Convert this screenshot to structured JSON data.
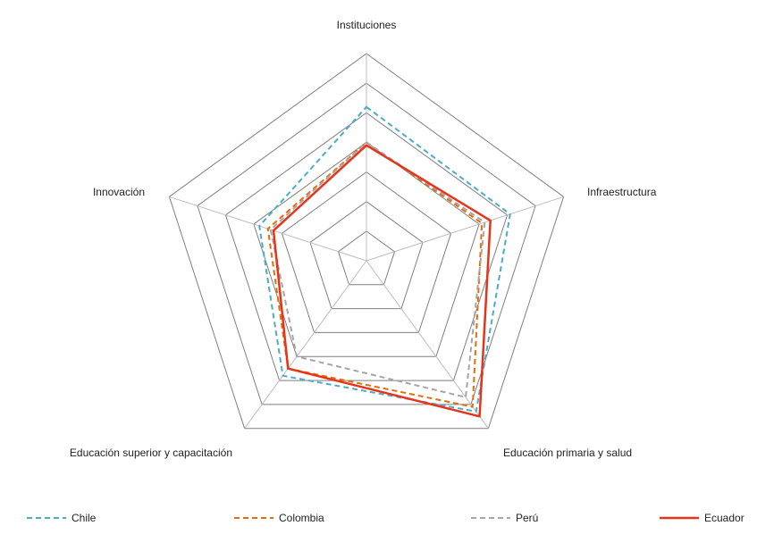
{
  "chart_data": {
    "type": "radar",
    "axes": [
      "Instituciones",
      "Infraestructura",
      "Educación primaria y salud",
      "Educación superior y capacitación",
      "Innovación"
    ],
    "range": [
      0,
      7
    ],
    "grid_levels": [
      1,
      2,
      3,
      4,
      5,
      6,
      7
    ],
    "grid": true,
    "legend_position": "bottom",
    "series": [
      {
        "name": "Chile",
        "color": "#4bacc6",
        "dash": "dashed",
        "values": [
          5.2,
          5.1,
          6.3,
          4.8,
          3.8
        ]
      },
      {
        "name": "Colombia",
        "color": "#e46c0a",
        "dash": "dashed",
        "values": [
          4.0,
          4.1,
          6.1,
          4.5,
          3.5
        ]
      },
      {
        "name": "Perú",
        "color": "#a6a6a6",
        "dash": "dashed",
        "values": [
          4.0,
          4.2,
          5.7,
          4.0,
          3.4
        ]
      },
      {
        "name": "Ecuador",
        "color": "#e8331b",
        "dash": "solid",
        "values": [
          3.9,
          4.4,
          6.5,
          4.5,
          3.3
        ]
      }
    ]
  }
}
